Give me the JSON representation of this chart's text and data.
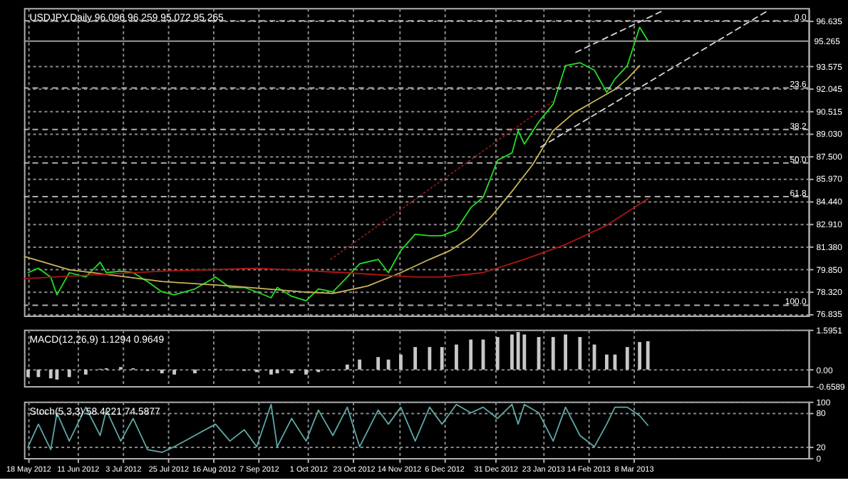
{
  "chart_data": [
    {
      "type": "line",
      "title": "USDJPY,Daily  96.096 96.259 95.072 95.265",
      "x": [
        "2012-05-18",
        "2012-05-23",
        "2012-05-29",
        "2012-06-01",
        "2012-06-07",
        "2012-06-15",
        "2012-06-22",
        "2012-06-25",
        "2012-07-02",
        "2012-07-08",
        "2012-07-15",
        "2012-07-22",
        "2012-07-28",
        "2012-08-07",
        "2012-08-17",
        "2012-08-24",
        "2012-08-31",
        "2012-09-06",
        "2012-09-13",
        "2012-09-16",
        "2012-09-23",
        "2012-09-30",
        "2012-10-06",
        "2012-10-13",
        "2012-10-20",
        "2012-10-26",
        "2012-11-04",
        "2012-11-09",
        "2012-11-15",
        "2012-11-22",
        "2012-11-29",
        "2012-12-05",
        "2012-12-12",
        "2012-12-19",
        "2012-12-25",
        "2013-01-01",
        "2013-01-08",
        "2013-01-11",
        "2013-01-14",
        "2013-01-21",
        "2013-01-28",
        "2013-02-03",
        "2013-02-10",
        "2013-02-17",
        "2013-02-23",
        "2013-02-27",
        "2013-03-05",
        "2013-03-11",
        "2013-03-15"
      ],
      "series": [
        {
          "color": "#22e022",
          "values": [
            79.6,
            79.9,
            79.3,
            78.1,
            79.6,
            79.3,
            80.3,
            79.6,
            79.7,
            79.6,
            79.0,
            78.3,
            78.1,
            78.5,
            79.3,
            78.6,
            78.6,
            78.3,
            77.9,
            78.6,
            78.0,
            77.7,
            78.5,
            78.3,
            79.3,
            80.2,
            80.5,
            79.6,
            81.1,
            82.2,
            82.1,
            82.1,
            82.5,
            84.0,
            84.7,
            87.2,
            87.7,
            89.2,
            88.3,
            89.8,
            91.0,
            93.6,
            93.8,
            93.3,
            91.8,
            92.7,
            93.6,
            96.2,
            95.3
          ]
        },
        {
          "color": "#c8b45a",
          "x": [
            "2012-05-16",
            "2012-06-07",
            "2012-07-22",
            "2012-08-24",
            "2012-09-28",
            "2012-10-13",
            "2012-10-30",
            "2012-11-15",
            "2012-11-29",
            "2012-12-09",
            "2012-12-19",
            "2012-12-29",
            "2013-01-08",
            "2013-01-18",
            "2013-01-28",
            "2013-02-07",
            "2013-02-17",
            "2013-02-27",
            "2013-03-05",
            "2013-03-11"
          ],
          "values": [
            80.7,
            79.8,
            79.0,
            78.7,
            78.3,
            78.2,
            78.7,
            79.6,
            80.5,
            81.1,
            82.0,
            83.4,
            85.1,
            86.9,
            89.2,
            90.4,
            91.2,
            92.0,
            92.7,
            93.6
          ]
        },
        {
          "color": "#b01414",
          "x": [
            "2012-05-16",
            "2012-07-22",
            "2012-09-07",
            "2012-10-19",
            "2012-11-22",
            "2012-12-05",
            "2012-12-25",
            "2013-01-14",
            "2013-02-03",
            "2013-02-23",
            "2013-03-15"
          ],
          "values": [
            79.2,
            79.7,
            79.9,
            79.6,
            79.3,
            79.3,
            79.6,
            80.5,
            81.5,
            82.8,
            84.6
          ]
        },
        {
          "color": "#d8d8d8",
          "line_style": "dashed",
          "x": [
            "2013-01-22",
            "2013-05-12"
          ],
          "values": [
            88.1,
            97.3
          ]
        },
        {
          "color": "#d8d8d8",
          "line_style": "dashed",
          "x": [
            "2013-02-08",
            "2013-03-22"
          ],
          "values": [
            94.5,
            97.3
          ]
        },
        {
          "color": "#8a1a1a",
          "line_style": "dotted",
          "x": [
            "2012-10-12",
            "2013-01-28"
          ],
          "values": [
            80.5,
            91.2
          ]
        }
      ],
      "xlim": [
        "2012-05-16",
        "2013-06-01"
      ],
      "xticks": [
        "2012-05-18",
        "2012-06-11",
        "2012-07-03",
        "2012-07-25",
        "2012-08-16",
        "2012-09-07",
        "2012-10-01",
        "2012-10-23",
        "2012-11-14",
        "2012-12-06",
        "2012-12-31",
        "2013-01-23",
        "2013-02-14",
        "2013-03-08"
      ],
      "ylim": [
        76.7,
        97.5
      ],
      "yticks": [
        96.635,
        93.575,
        92.045,
        90.515,
        {
          "value": 89.03,
          "label": "89.030"
        },
        {
          "value": 87.5,
          "label": "87.500"
        },
        {
          "value": 85.97,
          "label": "85.970"
        },
        {
          "value": 84.44,
          "label": "84.440"
        },
        {
          "value": 82.91,
          "label": "82.910"
        },
        {
          "value": 81.38,
          "label": "81.380"
        },
        {
          "value": 79.85,
          "label": "79.850"
        },
        {
          "value": 78.32,
          "label": "78.320"
        },
        76.835
      ],
      "y2lim": [
        103.64,
        -4.5
      ],
      "y2ticks": [
        {
          "value": 0,
          "label": "0.0"
        },
        23.6,
        38.2,
        {
          "value": 50,
          "label": "50.0"
        },
        61.8,
        {
          "value": 100,
          "label": "100.0"
        }
      ],
      "ref_lines": [
        {
          "axis": "y",
          "value": 95.265,
          "label": "95.265",
          "color": "#9a9a9a",
          "line_style": "solid"
        }
      ],
      "grid": true,
      "tick_labels": "y"
    },
    {
      "type": "bar",
      "title": "MACD(12,26,9) 1.1294 0.9649",
      "x": [
        "2012-05-18",
        "2012-05-23",
        "2012-05-29",
        "2012-06-01",
        "2012-06-07",
        "2012-06-15",
        "2012-06-22",
        "2012-06-25",
        "2012-07-02",
        "2012-07-08",
        "2012-07-15",
        "2012-07-22",
        "2012-07-28",
        "2012-08-07",
        "2012-08-17",
        "2012-08-24",
        "2012-08-31",
        "2012-09-06",
        "2012-09-13",
        "2012-09-16",
        "2012-09-23",
        "2012-09-30",
        "2012-10-06",
        "2012-10-13",
        "2012-10-20",
        "2012-10-26",
        "2012-11-04",
        "2012-11-09",
        "2012-11-15",
        "2012-11-22",
        "2012-11-29",
        "2012-12-05",
        "2012-12-12",
        "2012-12-19",
        "2012-12-25",
        "2013-01-01",
        "2013-01-08",
        "2013-01-11",
        "2013-01-14",
        "2013-01-21",
        "2013-01-28",
        "2013-02-03",
        "2013-02-10",
        "2013-02-17",
        "2013-02-23",
        "2013-02-27",
        "2013-03-05",
        "2013-03-11",
        "2013-03-15"
      ],
      "series": [
        {
          "color": "#c8c8c8",
          "values": [
            -0.3,
            -0.3,
            -0.35,
            -0.4,
            -0.3,
            -0.2,
            0.03,
            0.05,
            0.1,
            0.05,
            -0.05,
            -0.15,
            -0.2,
            -0.15,
            0.03,
            -0.03,
            -0.05,
            -0.1,
            -0.2,
            -0.15,
            -0.15,
            -0.2,
            -0.1,
            -0.03,
            0.2,
            0.4,
            0.5,
            0.4,
            0.6,
            0.9,
            0.9,
            0.9,
            1.0,
            1.2,
            1.2,
            1.3,
            1.4,
            1.5,
            1.4,
            1.3,
            1.3,
            1.4,
            1.3,
            1.0,
            0.6,
            0.6,
            0.9,
            1.1,
            1.13
          ]
        }
      ],
      "xlim": [
        "2012-05-16",
        "2013-06-01"
      ],
      "xticks": [
        "2012-05-18",
        "2012-06-11",
        "2012-07-03",
        "2012-07-25",
        "2012-08-16",
        "2012-09-07",
        "2012-10-01",
        "2012-10-23",
        "2012-11-14",
        "2012-12-06",
        "2012-12-31",
        "2013-01-23",
        "2013-02-14",
        "2013-03-08"
      ],
      "ylim": [
        -0.6589,
        1.5951
      ],
      "yticks": [
        1.5951,
        {
          "value": 0,
          "label": "0.00"
        },
        -0.6589
      ],
      "grid": true,
      "tick_labels": "y"
    },
    {
      "type": "line",
      "title": "Stoch(5,3,3) 58.4221 74.5877",
      "x": [
        "2012-05-18",
        "2012-05-23",
        "2012-05-29",
        "2012-06-01",
        "2012-06-07",
        "2012-06-15",
        "2012-06-22",
        "2012-06-25",
        "2012-07-02",
        "2012-07-08",
        "2012-07-15",
        "2012-07-22",
        "2012-07-28",
        "2012-08-07",
        "2012-08-17",
        "2012-08-24",
        "2012-08-31",
        "2012-09-06",
        "2012-09-13",
        "2012-09-16",
        "2012-09-23",
        "2012-09-30",
        "2012-10-06",
        "2012-10-13",
        "2012-10-20",
        "2012-10-26",
        "2012-11-04",
        "2012-11-09",
        "2012-11-15",
        "2012-11-22",
        "2012-11-29",
        "2012-12-05",
        "2012-12-12",
        "2012-12-19",
        "2012-12-25",
        "2013-01-01",
        "2013-01-08",
        "2013-01-11",
        "2013-01-14",
        "2013-01-21",
        "2013-01-28",
        "2013-02-03",
        "2013-02-10",
        "2013-02-17",
        "2013-02-23",
        "2013-02-27",
        "2013-03-05",
        "2013-03-11",
        "2013-03-15"
      ],
      "series": [
        {
          "color": "#5fa8a8",
          "values": [
            20,
            60,
            15,
            80,
            30,
            90,
            40,
            85,
            30,
            70,
            15,
            10,
            20,
            40,
            60,
            30,
            50,
            20,
            95,
            20,
            70,
            30,
            85,
            40,
            90,
            20,
            85,
            60,
            90,
            30,
            90,
            60,
            95,
            80,
            90,
            70,
            95,
            60,
            95,
            80,
            30,
            90,
            40,
            20,
            60,
            90,
            90,
            75,
            58
          ]
        }
      ],
      "xlim": [
        "2012-05-16",
        "2013-06-01"
      ],
      "xticks": [
        {
          "value": "2012-05-18",
          "label": "18 May 2012"
        },
        {
          "value": "2012-06-11",
          "label": "11 Jun 2012"
        },
        {
          "value": "2012-07-03",
          "label": "3 Jul 2012"
        },
        {
          "value": "2012-07-25",
          "label": "25 Jul 2012"
        },
        {
          "value": "2012-08-16",
          "label": "16 Aug 2012"
        },
        {
          "value": "2012-09-07",
          "label": "7 Sep 2012"
        },
        {
          "value": "2012-10-01",
          "label": "1 Oct 2012"
        },
        {
          "value": "2012-10-23",
          "label": "23 Oct 2012"
        },
        {
          "value": "2012-11-14",
          "label": "14 Nov 2012"
        },
        {
          "value": "2012-12-06",
          "label": "6 Dec 2012"
        },
        {
          "value": "2012-12-31",
          "label": "31 Dec 2012"
        },
        {
          "value": "2013-01-23",
          "label": "23 Jan 2013"
        },
        {
          "value": "2013-02-14",
          "label": "14 Feb 2013"
        },
        {
          "value": "2013-03-08",
          "label": "8 Mar 2013"
        }
      ],
      "ylim": [
        0,
        100
      ],
      "yticks": [
        100,
        80,
        20,
        0
      ],
      "grid": true
    }
  ]
}
